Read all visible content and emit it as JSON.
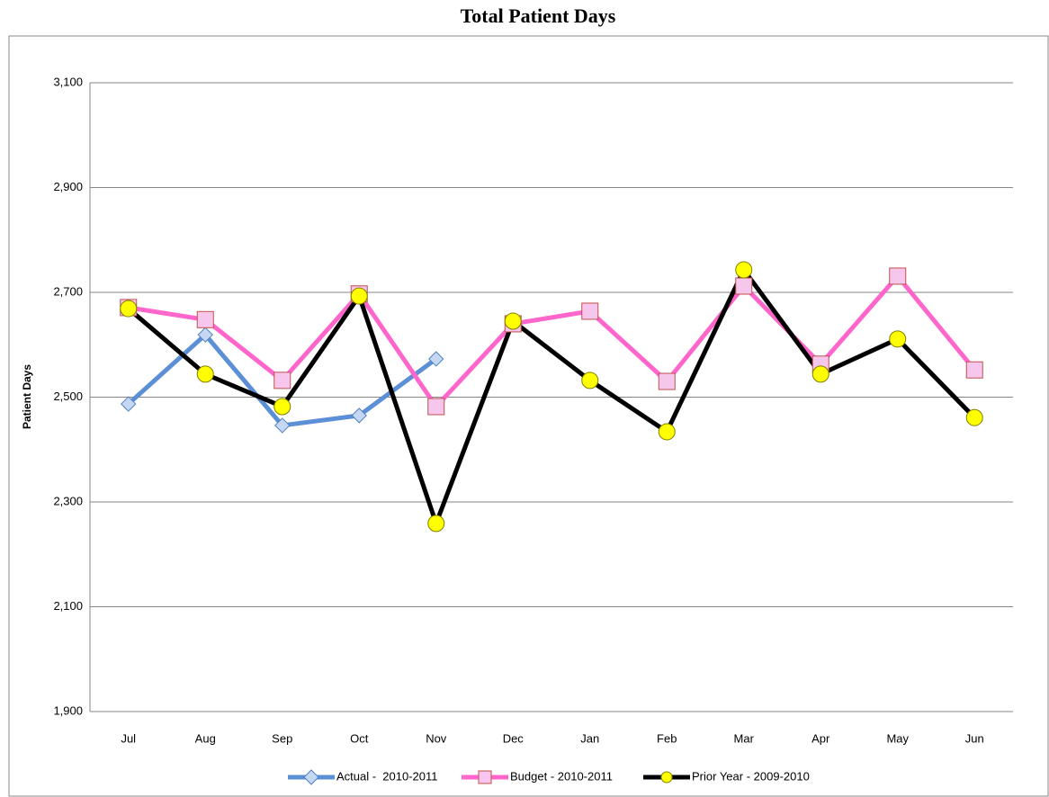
{
  "chart_data": {
    "type": "line",
    "title": "Total Patient Days",
    "y_label": "Patient Days",
    "categories": [
      "Jul",
      "Aug",
      "Sep",
      "Oct",
      "Nov",
      "Dec",
      "Jan",
      "Feb",
      "Mar",
      "Apr",
      "May",
      "Jun"
    ],
    "series": [
      {
        "name": "Actual -  2010-2011",
        "color": "#5b8fd6",
        "marker": "diamond",
        "marker_fill": "#c5d7f2",
        "marker_stroke": "#4f81bd",
        "values": [
          2487,
          2619,
          2446,
          2465,
          2573,
          null,
          null,
          null,
          null,
          null,
          null,
          null
        ]
      },
      {
        "name": "Budget - 2010-2011",
        "color": "#ff66cc",
        "marker": "square",
        "marker_fill": "#f7c6ec",
        "marker_stroke": "#c0504d",
        "values": [
          2671,
          2648,
          2532,
          2697,
          2482,
          2640,
          2664,
          2530,
          2712,
          2563,
          2731,
          2552
        ]
      },
      {
        "name": "Prior Year - 2009-2010",
        "color": "#000000",
        "marker": "circle",
        "marker_fill": "#ffff00",
        "marker_stroke": "#7f7f00",
        "values": [
          2669,
          2544,
          2482,
          2693,
          2259,
          2645,
          2532,
          2434,
          2743,
          2544,
          2611,
          2461
        ]
      }
    ],
    "ylim": [
      1900,
      3100
    ],
    "yticks": [
      {
        "value": 1900,
        "label": "1,900"
      },
      {
        "value": 2100,
        "label": "2,100"
      },
      {
        "value": 2300,
        "label": "2,300"
      },
      {
        "value": 2500,
        "label": "2,500"
      },
      {
        "value": 2700,
        "label": "2,700"
      },
      {
        "value": 2900,
        "label": "2,900"
      },
      {
        "value": 3100,
        "label": "3,100"
      }
    ],
    "grid": true,
    "legend": "bottom"
  }
}
